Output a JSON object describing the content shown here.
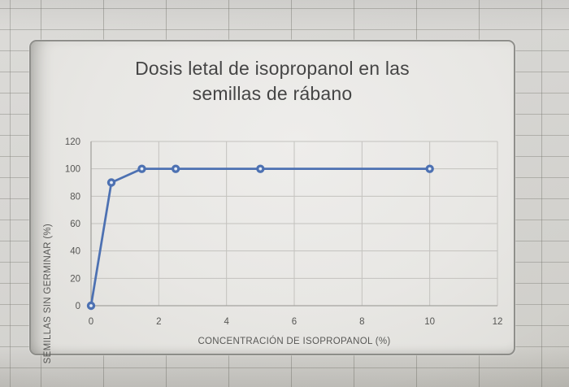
{
  "chart_data": {
    "type": "line",
    "title": "Dosis letal de isopropanol en las semillas de rábano",
    "title_lines": [
      "Dosis letal de isopropanol en las",
      "semillas de rábano"
    ],
    "xlabel": "CONCENTRACIÓN DE ISOPROPANOL (%)",
    "ylabel": "SEMILLAS SIN GERMINAR (%)",
    "series": [
      {
        "x": [
          0,
          0.6,
          1.5,
          2.5,
          5,
          10
        ],
        "y": [
          0,
          90,
          100,
          100,
          100,
          100
        ]
      }
    ],
    "xlim": [
      0,
      12
    ],
    "ylim": [
      0,
      120
    ],
    "xticks": [
      0,
      2,
      4,
      6,
      8,
      10,
      12
    ],
    "yticks": [
      0,
      20,
      40,
      60,
      80,
      100,
      120
    ],
    "grid": true,
    "legend": false,
    "marker": "circle-donut"
  },
  "colors": {
    "sheet_background": "#d6d5d2",
    "cell_gridline": "#8f8f86",
    "card_background": "#e8e7e4",
    "card_border": "#8f8f8b",
    "plot_gridline": "#c3c2be",
    "axis_line": "#a4a39f",
    "tick_text": "#565654",
    "title_text": "#454545",
    "series_line": "#4d71b2",
    "marker_fill": "#4d71b2",
    "marker_center": "#e3eaf4"
  }
}
